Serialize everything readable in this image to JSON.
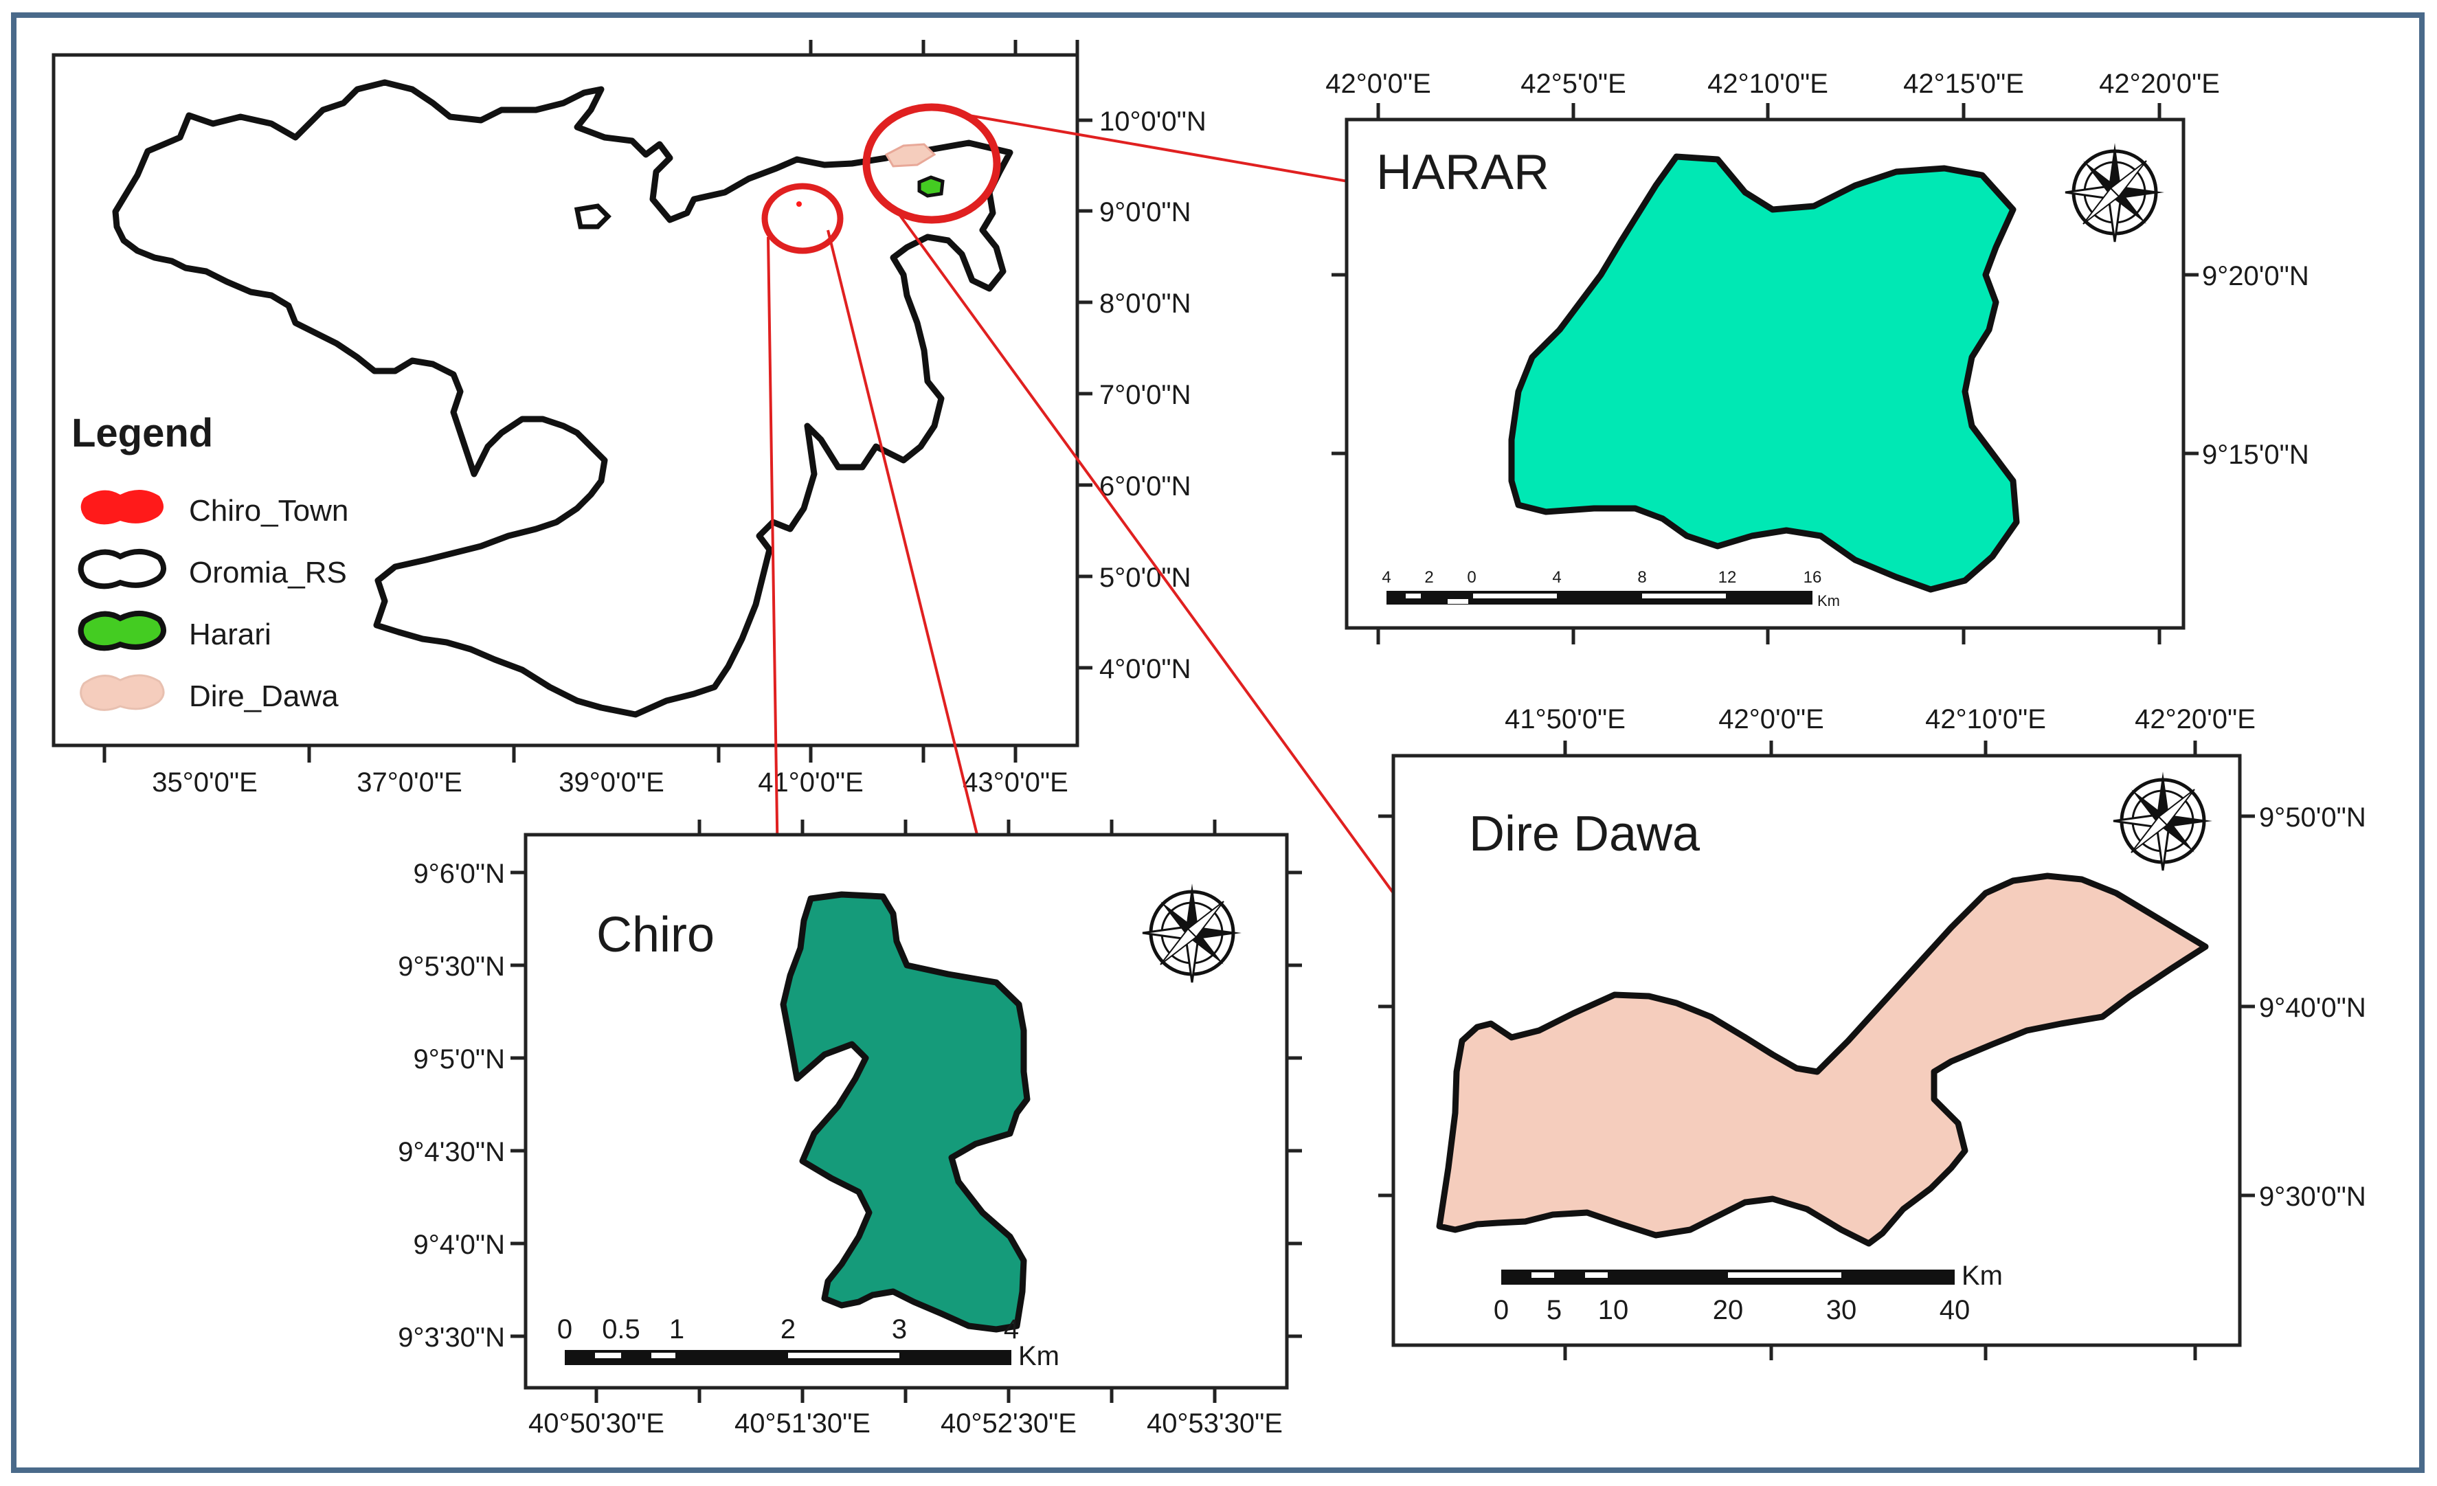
{
  "colors": {
    "frame": "#4a6a8a",
    "chiro_town": "#ff1a1a",
    "oromia_fill": "#ffffff",
    "harari": "#44cc22",
    "dire_dawa": "#f5cdbd",
    "harar_map_fill": "#00e8b4",
    "chiro_map_fill": "#159b7a",
    "connector": "#e02020"
  },
  "overview": {
    "lat_labels": [
      "10°0'0\"N",
      "9°0'0\"N",
      "8°0'0\"N",
      "7°0'0\"N",
      "6°0'0\"N",
      "5°0'0\"N",
      "4°0'0\"N"
    ],
    "lon_labels": [
      "35°0'0\"E",
      "37°0'0\"E",
      "39°0'0\"E",
      "41°0'0\"E",
      "43°0'0\"E"
    ]
  },
  "legend": {
    "title": "Legend",
    "items": [
      {
        "label": "Chiro_Town",
        "icon": "chiro-town-swatch"
      },
      {
        "label": "Oromia_RS",
        "icon": "oromia-swatch"
      },
      {
        "label": "Harari",
        "icon": "harari-swatch"
      },
      {
        "label": "Dire_Dawa",
        "icon": "dire-dawa-swatch"
      }
    ]
  },
  "harar": {
    "title": "HARAR",
    "lon_labels": [
      "42°0'0\"E",
      "42°5'0\"E",
      "42°10'0\"E",
      "42°15'0\"E",
      "42°20'0\"E"
    ],
    "lat_labels": [
      "9°20'0\"N",
      "9°15'0\"N"
    ],
    "scale_labels": [
      "4",
      "2",
      "0",
      "4",
      "8",
      "12",
      "16"
    ],
    "scale_unit": "Km"
  },
  "dire": {
    "title": "Dire Dawa",
    "lon_labels": [
      "41°50'0\"E",
      "42°0'0\"E",
      "42°10'0\"E",
      "42°20'0\"E"
    ],
    "lat_labels": [
      "9°50'0\"N",
      "9°40'0\"N",
      "9°30'0\"N"
    ],
    "scale_labels": [
      "0",
      "5",
      "10",
      "20",
      "30",
      "40"
    ],
    "scale_unit": "Km"
  },
  "chiro": {
    "title": "Chiro",
    "lat_labels": [
      "9°6'0\"N",
      "9°5'30\"N",
      "9°5'0\"N",
      "9°4'30\"N",
      "9°4'0\"N",
      "9°3'30\"N"
    ],
    "lon_labels": [
      "40°50'30\"E",
      "40°51'30\"E",
      "40°52'30\"E",
      "40°53'30\"E"
    ],
    "scale_labels": [
      "0",
      "0.5",
      "1",
      "2",
      "3",
      "4"
    ],
    "scale_unit": "Km"
  },
  "compass_icon": "north-arrow-compass-icon"
}
